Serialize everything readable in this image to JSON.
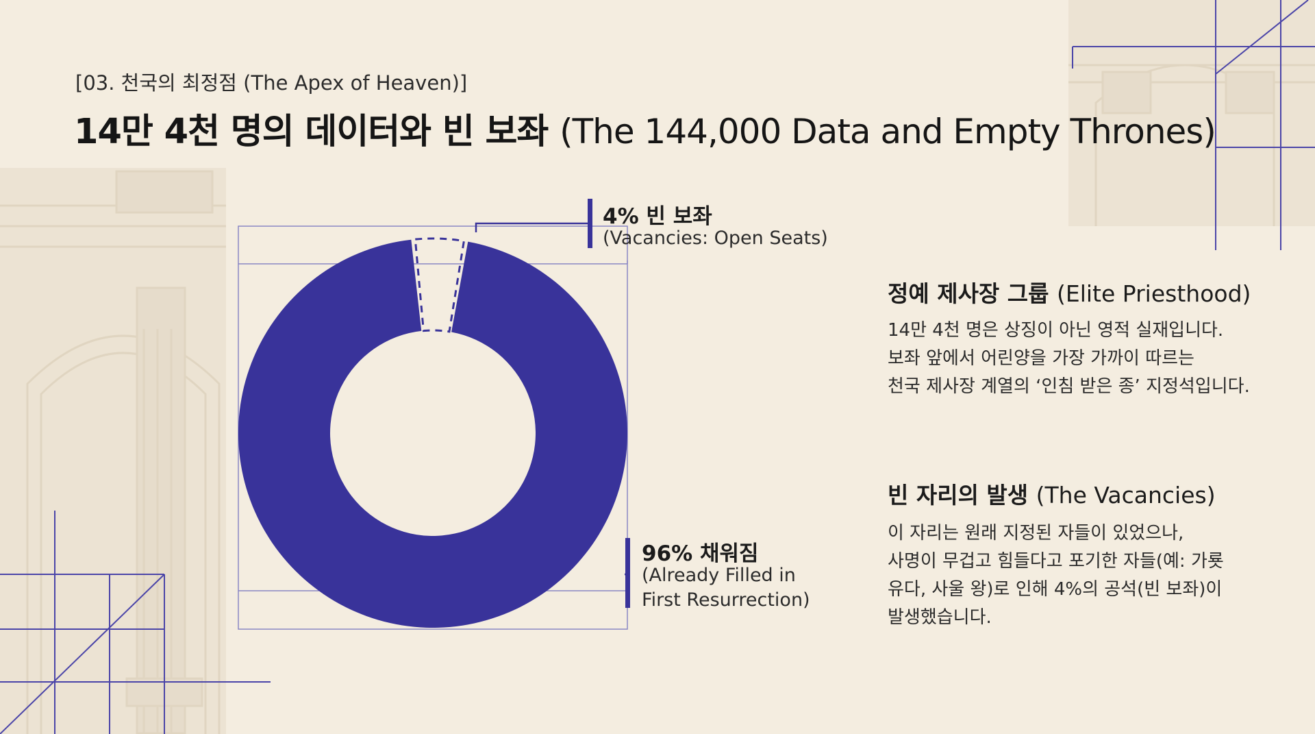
{
  "header": {
    "section_label": "[03. 천국의 최정점 (The Apex of Heaven)]",
    "title_ko": "14만 4천 명의 데이터와 빈 보좌",
    "title_en": "(The 144,000 Data and Empty Thrones)"
  },
  "colors": {
    "background": "#f4ede0",
    "accent": "#39339a",
    "text": "#1e1e1e",
    "architecture": "#e3d9c7"
  },
  "chart_data": {
    "type": "pie",
    "variant": "donut",
    "series": [
      {
        "name": "96% 채워짐",
        "value": 96,
        "style": "filled"
      },
      {
        "name": "4% 빈 보좌",
        "value": 4,
        "style": "dashed-outline"
      }
    ],
    "labels": {
      "vacant_title": "4% 빈 보좌",
      "vacant_sub": "(Vacancies: Open Seats)",
      "filled_title": "96% 채워짐",
      "filled_sub_1": "(Already Filled in",
      "filled_sub_2": "First Resurrection)"
    }
  },
  "sections": [
    {
      "heading_ko": "정예 제사장 그룹",
      "heading_en": "(Elite Priesthood)",
      "lines": [
        "14만 4천 명은 상징이 아닌 영적 실재입니다.",
        "보좌 앞에서 어린양을 가장 가까이 따르는",
        "천국 제사장 계열의 ‘인침 받은 종’ 지정석입니다."
      ]
    },
    {
      "heading_ko": "빈 자리의 발생",
      "heading_en": "(The Vacancies)",
      "lines": [
        "이 자리는 원래 지정된 자들이 있었으나,",
        "사명이 무겁고 힘들다고 포기한 자들(예: 가룟",
        "유다, 사울 왕)로 인해 4%의 공석(빈 보좌)이",
        "발생했습니다."
      ]
    }
  ]
}
